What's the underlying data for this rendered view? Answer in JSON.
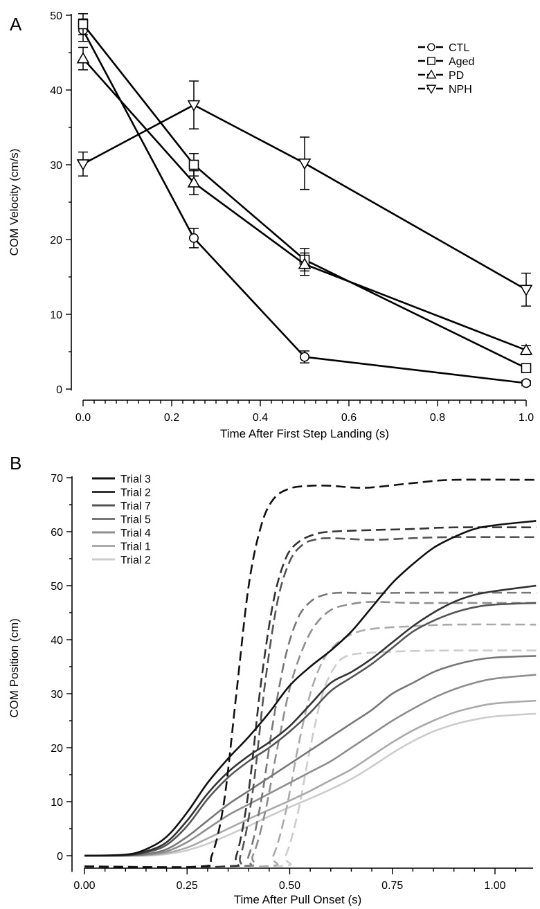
{
  "chart_data": [
    {
      "panel": "A",
      "type": "line",
      "xlabel": "Time After First Step Landing (s)",
      "ylabel": "COM Velocity (cm/s)",
      "xlim": [
        0.0,
        1.0
      ],
      "ylim": [
        0,
        50
      ],
      "x_ticks": [
        "0.0",
        "0.2",
        "0.4",
        "0.6",
        "0.8",
        "1.0"
      ],
      "y_ticks": [
        "0",
        "10",
        "20",
        "30",
        "40",
        "50"
      ],
      "x": [
        0.0,
        0.25,
        0.5,
        1.0
      ],
      "legend_position": "top-right",
      "grid": false,
      "series": [
        {
          "name": "CTL",
          "marker": "circle",
          "values": [
            48.0,
            20.2,
            4.3,
            0.8
          ],
          "error": [
            1.5,
            1.3,
            0.8,
            0.3
          ]
        },
        {
          "name": "Aged",
          "marker": "square",
          "values": [
            48.8,
            30.0,
            17.3,
            2.8
          ],
          "error": [
            1.4,
            1.5,
            1.5,
            0.4
          ]
        },
        {
          "name": "PD",
          "marker": "triangle-up",
          "values": [
            44.2,
            27.6,
            16.7,
            5.2
          ],
          "error": [
            1.5,
            1.6,
            1.5,
            0.6
          ]
        },
        {
          "name": "NPH",
          "marker": "triangle-down",
          "values": [
            30.1,
            38.0,
            30.2,
            13.3
          ],
          "error": [
            1.6,
            3.2,
            3.5,
            2.2
          ]
        }
      ]
    },
    {
      "panel": "B",
      "type": "line",
      "xlabel": "Time After Pull Onset (s)",
      "ylabel": "COM Position (cm)",
      "xlim": [
        0.0,
        1.1
      ],
      "ylim": [
        -3,
        70
      ],
      "x_ticks": [
        "0.00",
        "0.25",
        "0.50",
        "0.75",
        "1.00"
      ],
      "y_ticks": [
        "0",
        "10",
        "20",
        "30",
        "40",
        "50",
        "60",
        "70"
      ],
      "legend_position": "top-left",
      "grid": false,
      "series": [
        {
          "name": "Trial 3",
          "color": "#111111",
          "solid": [
            [
              0,
              0
            ],
            [
              0.1,
              0.2
            ],
            [
              0.15,
              1.2
            ],
            [
              0.2,
              3.5
            ],
            [
              0.25,
              8
            ],
            [
              0.3,
              13.5
            ],
            [
              0.35,
              18
            ],
            [
              0.4,
              22
            ],
            [
              0.45,
              26.5
            ],
            [
              0.5,
              31.5
            ],
            [
              0.55,
              35
            ],
            [
              0.6,
              38
            ],
            [
              0.65,
              41.5
            ],
            [
              0.7,
              46
            ],
            [
              0.75,
              50.5
            ],
            [
              0.8,
              54
            ],
            [
              0.85,
              57
            ],
            [
              0.9,
              59
            ],
            [
              0.95,
              60.5
            ],
            [
              1.0,
              61.2
            ],
            [
              1.1,
              62
            ]
          ],
          "dashed": [
            [
              0,
              -2
            ],
            [
              0.28,
              -2
            ],
            [
              0.31,
              0
            ],
            [
              0.34,
              10
            ],
            [
              0.37,
              30
            ],
            [
              0.4,
              50
            ],
            [
              0.43,
              61
            ],
            [
              0.46,
              66
            ],
            [
              0.5,
              68
            ],
            [
              0.55,
              68.5
            ],
            [
              0.6,
              68.5
            ],
            [
              0.65,
              68.2
            ],
            [
              0.7,
              68.2
            ],
            [
              0.8,
              69
            ],
            [
              0.9,
              69.6
            ],
            [
              1.1,
              69.6
            ]
          ]
        },
        {
          "name": "Trial 2",
          "color": "#333333",
          "solid": [
            [
              0,
              0
            ],
            [
              0.1,
              0.1
            ],
            [
              0.15,
              0.8
            ],
            [
              0.2,
              2.5
            ],
            [
              0.25,
              6.5
            ],
            [
              0.3,
              11.5
            ],
            [
              0.35,
              15.5
            ],
            [
              0.4,
              18.5
            ],
            [
              0.45,
              21
            ],
            [
              0.5,
              24
            ],
            [
              0.55,
              28
            ],
            [
              0.6,
              32
            ],
            [
              0.65,
              34
            ],
            [
              0.7,
              36.5
            ],
            [
              0.75,
              39.5
            ],
            [
              0.8,
              42.5
            ],
            [
              0.85,
              45
            ],
            [
              0.9,
              47
            ],
            [
              0.95,
              48.3
            ],
            [
              1.0,
              49
            ],
            [
              1.1,
              50
            ]
          ],
          "dashed": [
            [
              0,
              -2
            ],
            [
              0.34,
              -2
            ],
            [
              0.37,
              0
            ],
            [
              0.4,
              12
            ],
            [
              0.43,
              32
            ],
            [
              0.46,
              47
            ],
            [
              0.49,
              55
            ],
            [
              0.52,
              58
            ],
            [
              0.56,
              59.5
            ],
            [
              0.6,
              60
            ],
            [
              0.7,
              60.3
            ],
            [
              0.8,
              60.5
            ],
            [
              0.9,
              60.8
            ],
            [
              1.1,
              60.8
            ]
          ]
        },
        {
          "name": "Trial 7",
          "color": "#555555",
          "solid": [
            [
              0,
              0
            ],
            [
              0.1,
              0.1
            ],
            [
              0.15,
              0.6
            ],
            [
              0.2,
              2
            ],
            [
              0.25,
              5.5
            ],
            [
              0.3,
              10.5
            ],
            [
              0.35,
              14.5
            ],
            [
              0.4,
              17.5
            ],
            [
              0.45,
              20
            ],
            [
              0.5,
              23
            ],
            [
              0.55,
              26.5
            ],
            [
              0.6,
              30.5
            ],
            [
              0.65,
              33
            ],
            [
              0.7,
              35.5
            ],
            [
              0.75,
              38.5
            ],
            [
              0.8,
              41.5
            ],
            [
              0.85,
              43.5
            ],
            [
              0.9,
              45
            ],
            [
              0.95,
              46
            ],
            [
              1.0,
              46.5
            ],
            [
              1.1,
              46.8
            ]
          ],
          "dashed": [
            [
              0,
              -2
            ],
            [
              0.35,
              -2
            ],
            [
              0.38,
              0
            ],
            [
              0.41,
              12
            ],
            [
              0.44,
              32
            ],
            [
              0.47,
              47
            ],
            [
              0.5,
              54.5
            ],
            [
              0.53,
              57.5
            ],
            [
              0.56,
              58.5
            ],
            [
              0.6,
              58.8
            ],
            [
              0.7,
              58.5
            ],
            [
              0.8,
              58.8
            ],
            [
              0.9,
              59
            ],
            [
              1.1,
              59
            ]
          ]
        },
        {
          "name": "Trial 5",
          "color": "#777777",
          "solid": [
            [
              0,
              0
            ],
            [
              0.1,
              0
            ],
            [
              0.15,
              0.3
            ],
            [
              0.2,
              1.2
            ],
            [
              0.25,
              3.5
            ],
            [
              0.3,
              6.5
            ],
            [
              0.35,
              9.5
            ],
            [
              0.4,
              12
            ],
            [
              0.45,
              14.5
            ],
            [
              0.5,
              17
            ],
            [
              0.55,
              19.5
            ],
            [
              0.6,
              22
            ],
            [
              0.65,
              24.5
            ],
            [
              0.7,
              27
            ],
            [
              0.75,
              30
            ],
            [
              0.8,
              32
            ],
            [
              0.85,
              34
            ],
            [
              0.9,
              35.3
            ],
            [
              0.95,
              36.2
            ],
            [
              1.0,
              36.7
            ],
            [
              1.1,
              37
            ]
          ],
          "dashed": [
            [
              0,
              -2
            ],
            [
              0.37,
              -2
            ],
            [
              0.4,
              0
            ],
            [
              0.43,
              10
            ],
            [
              0.46,
              25
            ],
            [
              0.49,
              37
            ],
            [
              0.52,
              44
            ],
            [
              0.55,
              47
            ],
            [
              0.58,
              48.2
            ],
            [
              0.62,
              48.7
            ],
            [
              0.7,
              48.6
            ],
            [
              0.8,
              48.7
            ],
            [
              1.1,
              48.7
            ]
          ]
        },
        {
          "name": "Trial 4",
          "color": "#8e8e8e",
          "solid": [
            [
              0,
              0
            ],
            [
              0.1,
              0
            ],
            [
              0.15,
              0.2
            ],
            [
              0.2,
              0.8
            ],
            [
              0.25,
              2.5
            ],
            [
              0.3,
              5
            ],
            [
              0.35,
              7.5
            ],
            [
              0.4,
              9.5
            ],
            [
              0.45,
              11.5
            ],
            [
              0.5,
              13.5
            ],
            [
              0.55,
              15.5
            ],
            [
              0.6,
              17.5
            ],
            [
              0.65,
              20
            ],
            [
              0.7,
              22.5
            ],
            [
              0.75,
              25
            ],
            [
              0.8,
              27.2
            ],
            [
              0.85,
              29.2
            ],
            [
              0.9,
              30.8
            ],
            [
              0.95,
              32
            ],
            [
              1.0,
              32.8
            ],
            [
              1.1,
              33.5
            ]
          ],
          "dashed": [
            [
              0,
              -2
            ],
            [
              0.38,
              -2
            ],
            [
              0.41,
              0
            ],
            [
              0.44,
              8
            ],
            [
              0.47,
              20
            ],
            [
              0.5,
              31
            ],
            [
              0.53,
              38
            ],
            [
              0.56,
              42.5
            ],
            [
              0.6,
              45.5
            ],
            [
              0.65,
              46.6
            ],
            [
              0.7,
              47
            ],
            [
              0.8,
              46.8
            ],
            [
              0.9,
              46.8
            ],
            [
              1.1,
              46.8
            ]
          ]
        },
        {
          "name": "Trial 1",
          "color": "#aaaaaa",
          "solid": [
            [
              0,
              0
            ],
            [
              0.1,
              0
            ],
            [
              0.15,
              0.1
            ],
            [
              0.2,
              0.5
            ],
            [
              0.25,
              1.5
            ],
            [
              0.3,
              3.2
            ],
            [
              0.35,
              5
            ],
            [
              0.4,
              6.8
            ],
            [
              0.45,
              8.5
            ],
            [
              0.5,
              10.2
            ],
            [
              0.55,
              12
            ],
            [
              0.6,
              14
            ],
            [
              0.65,
              16
            ],
            [
              0.7,
              18.5
            ],
            [
              0.75,
              21
            ],
            [
              0.8,
              23.2
            ],
            [
              0.85,
              25
            ],
            [
              0.9,
              26.5
            ],
            [
              0.95,
              27.5
            ],
            [
              1.0,
              28.2
            ],
            [
              1.1,
              28.7
            ]
          ],
          "dashed": [
            [
              0,
              -2
            ],
            [
              0.43,
              -2
            ],
            [
              0.46,
              0
            ],
            [
              0.49,
              8
            ],
            [
              0.52,
              20
            ],
            [
              0.55,
              30
            ],
            [
              0.58,
              36
            ],
            [
              0.61,
              39
            ],
            [
              0.65,
              41
            ],
            [
              0.7,
              42
            ],
            [
              0.8,
              42.5
            ],
            [
              0.9,
              42.8
            ],
            [
              1.1,
              42.8
            ]
          ]
        },
        {
          "name": "Trial 2",
          "color": "#cccccc",
          "solid": [
            [
              0,
              0
            ],
            [
              0.1,
              0
            ],
            [
              0.15,
              0
            ],
            [
              0.2,
              0.3
            ],
            [
              0.25,
              1
            ],
            [
              0.3,
              2.2
            ],
            [
              0.35,
              3.8
            ],
            [
              0.4,
              5.5
            ],
            [
              0.45,
              7.3
            ],
            [
              0.5,
              9
            ],
            [
              0.55,
              10.6
            ],
            [
              0.6,
              12.3
            ],
            [
              0.65,
              14.2
            ],
            [
              0.7,
              16.5
            ],
            [
              0.75,
              19
            ],
            [
              0.8,
              21.2
            ],
            [
              0.85,
              23
            ],
            [
              0.9,
              24.3
            ],
            [
              0.95,
              25.2
            ],
            [
              1.0,
              25.8
            ],
            [
              1.1,
              26.3
            ]
          ],
          "dashed": [
            [
              0,
              -2
            ],
            [
              0.46,
              -2
            ],
            [
              0.49,
              0
            ],
            [
              0.52,
              8
            ],
            [
              0.55,
              20
            ],
            [
              0.58,
              30
            ],
            [
              0.61,
              35
            ],
            [
              0.64,
              37
            ],
            [
              0.7,
              37.6
            ],
            [
              0.8,
              37.9
            ],
            [
              0.9,
              38
            ],
            [
              1.1,
              38
            ]
          ]
        }
      ]
    }
  ]
}
